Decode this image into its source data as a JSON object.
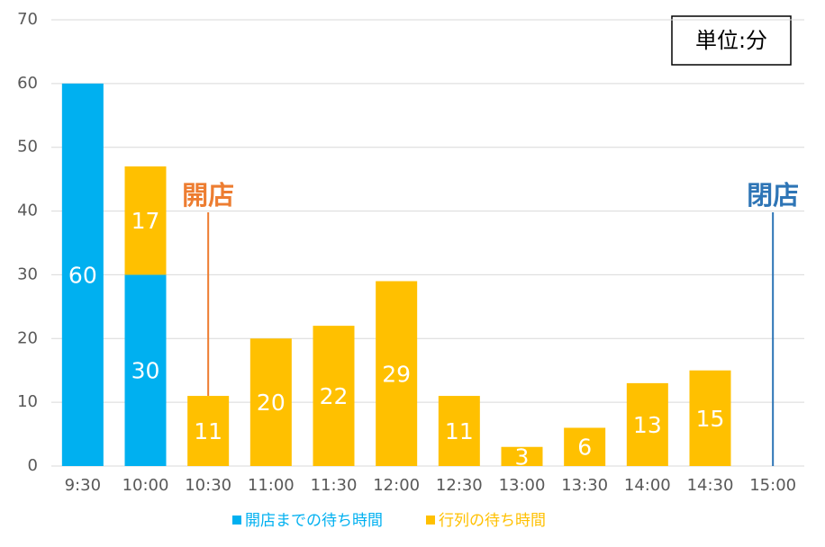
{
  "chart_data": {
    "type": "bar",
    "stacked": true,
    "categories": [
      "9:30",
      "10:00",
      "10:30",
      "11:00",
      "11:30",
      "12:00",
      "12:30",
      "13:00",
      "13:30",
      "14:00",
      "14:30",
      "15:00"
    ],
    "series": [
      {
        "name": "開店までの待ち時間",
        "color": "#00b0f0",
        "values": [
          60,
          30,
          null,
          null,
          null,
          null,
          null,
          null,
          null,
          null,
          null,
          null
        ]
      },
      {
        "name": "行列の待ち時間",
        "color": "#ffc000",
        "values": [
          null,
          17,
          11,
          20,
          22,
          29,
          11,
          3,
          6,
          13,
          15,
          null
        ]
      }
    ],
    "ylim": [
      0,
      70
    ],
    "yticks": [
      0,
      10,
      20,
      30,
      40,
      50,
      60,
      70
    ],
    "grid": true,
    "unit_label": "単位:分",
    "annotations": [
      {
        "text": "開店",
        "category": "10:30",
        "color": "#ed7d31"
      },
      {
        "text": "閉店",
        "category": "15:00",
        "color": "#2e75b6"
      }
    ]
  }
}
